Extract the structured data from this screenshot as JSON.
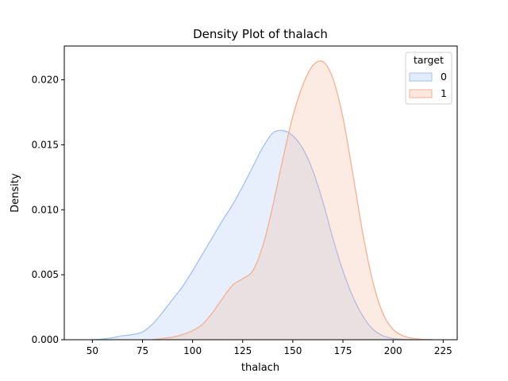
{
  "chart_data": {
    "type": "area",
    "title": "Density Plot of thalach",
    "xlabel": "thalach",
    "ylabel": "Density",
    "xlim": [
      36,
      232
    ],
    "ylim": [
      0,
      0.0226
    ],
    "x_ticks": [
      50,
      75,
      100,
      125,
      150,
      175,
      200,
      225
    ],
    "y_ticks": [
      0.0,
      0.005,
      0.01,
      0.015,
      0.02
    ],
    "y_tick_labels": [
      "0.000",
      "0.005",
      "0.010",
      "0.015",
      "0.020"
    ],
    "grid": false,
    "legend": {
      "title": "target",
      "placement": "top-right"
    },
    "series": [
      {
        "name": "0",
        "color": "#a1c0f7",
        "fill": "#e8effb",
        "x": [
          50,
          55,
          60,
          65,
          70,
          75,
          80,
          85,
          90,
          95,
          100,
          105,
          110,
          115,
          120,
          125,
          130,
          135,
          140,
          145,
          150,
          155,
          160,
          165,
          170,
          175,
          180,
          185,
          190,
          195,
          200,
          205,
          210
        ],
        "y": [
          0.0,
          5e-05,
          0.00015,
          0.0003,
          0.0004,
          0.0006,
          0.0012,
          0.0021,
          0.0031,
          0.0041,
          0.0053,
          0.0066,
          0.0079,
          0.0092,
          0.0104,
          0.0118,
          0.0133,
          0.0148,
          0.0159,
          0.0161,
          0.0157,
          0.0147,
          0.013,
          0.0106,
          0.0078,
          0.0053,
          0.0033,
          0.0018,
          0.0008,
          0.0003,
          0.0001,
          3e-05,
          0.0
        ]
      },
      {
        "name": "1",
        "color": "#f4b090",
        "fill": "#fbe5dc",
        "x": [
          80,
          85,
          90,
          95,
          100,
          105,
          110,
          115,
          120,
          125,
          130,
          135,
          140,
          145,
          150,
          155,
          160,
          165,
          170,
          175,
          180,
          185,
          190,
          195,
          200,
          205,
          210,
          215,
          220
        ],
        "y": [
          0.0,
          0.0001,
          0.0002,
          0.0004,
          0.0007,
          0.0012,
          0.0021,
          0.0032,
          0.0042,
          0.0047,
          0.0053,
          0.0072,
          0.0103,
          0.0139,
          0.0172,
          0.0196,
          0.0211,
          0.0214,
          0.0201,
          0.0171,
          0.0127,
          0.0081,
          0.0044,
          0.002,
          0.0008,
          0.0003,
          0.0001,
          3e-05,
          0.0
        ]
      }
    ]
  }
}
